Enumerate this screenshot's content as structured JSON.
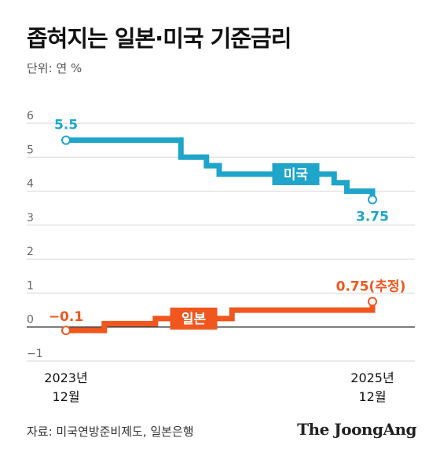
{
  "title": "좁혀지는 일본·미국 기준금리",
  "unit_label": "단위: 연 %",
  "source": "자료: 미국연방준비제도, 일본은행",
  "brand": "The JoongAng",
  "chart_data": {
    "type": "line",
    "step": true,
    "ylim": [
      -1,
      6
    ],
    "yticks": [
      6,
      5,
      4,
      3,
      2,
      1,
      0,
      -1
    ],
    "ytick_labels": [
      "6",
      "5",
      "4",
      "3",
      "2",
      "1",
      "0",
      "−1"
    ],
    "grid": true,
    "x_labels": {
      "start": [
        "2023년",
        "12월"
      ],
      "end": [
        "2025년",
        "12월"
      ]
    },
    "x_range": [
      "2023-12",
      "2025-12"
    ],
    "series": [
      {
        "name": "미국",
        "color": "#1ea5c9",
        "points": [
          [
            "2023-12",
            5.5
          ],
          [
            "2024-09",
            5.0
          ],
          [
            "2024-11",
            4.75
          ],
          [
            "2024-12",
            4.5
          ],
          [
            "2025-09",
            4.25
          ],
          [
            "2025-10",
            4.0
          ],
          [
            "2025-12",
            3.75
          ]
        ],
        "start_label": "5.5",
        "end_label": "3.75"
      },
      {
        "name": "일본",
        "color": "#f0561d",
        "points": [
          [
            "2023-12",
            -0.1
          ],
          [
            "2024-03",
            0.1
          ],
          [
            "2024-07",
            0.25
          ],
          [
            "2025-01",
            0.5
          ],
          [
            "2025-12",
            0.75
          ]
        ],
        "start_label": "−0.1",
        "end_label": "0.75(추정)"
      }
    ]
  }
}
